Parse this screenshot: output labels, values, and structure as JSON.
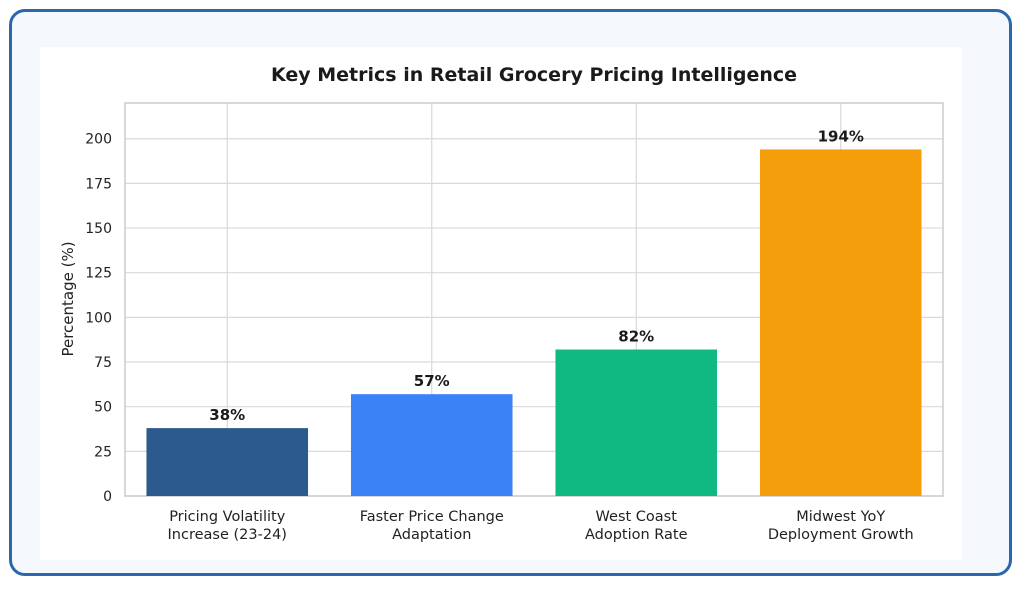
{
  "chart_data": {
    "type": "bar",
    "title": "Key Metrics in Retail Grocery Pricing Intelligence",
    "xlabel": "",
    "ylabel": "Percentage (%)",
    "categories": [
      [
        "Pricing Volatility",
        "Increase (23-24)"
      ],
      [
        "Faster Price Change",
        "Adaptation"
      ],
      [
        "West Coast",
        "Adoption Rate"
      ],
      [
        "Midwest YoY",
        "Deployment Growth"
      ]
    ],
    "values": [
      38,
      57,
      82,
      194
    ],
    "value_labels": [
      "38%",
      "57%",
      "82%",
      "194%"
    ],
    "colors": [
      "#2b5a8f",
      "#3b82f6",
      "#10b981",
      "#f59e0b"
    ],
    "ylim": [
      0,
      220
    ],
    "yticks": [
      0,
      25,
      50,
      75,
      100,
      125,
      150,
      175,
      200
    ],
    "grid": true,
    "legend": "none"
  }
}
